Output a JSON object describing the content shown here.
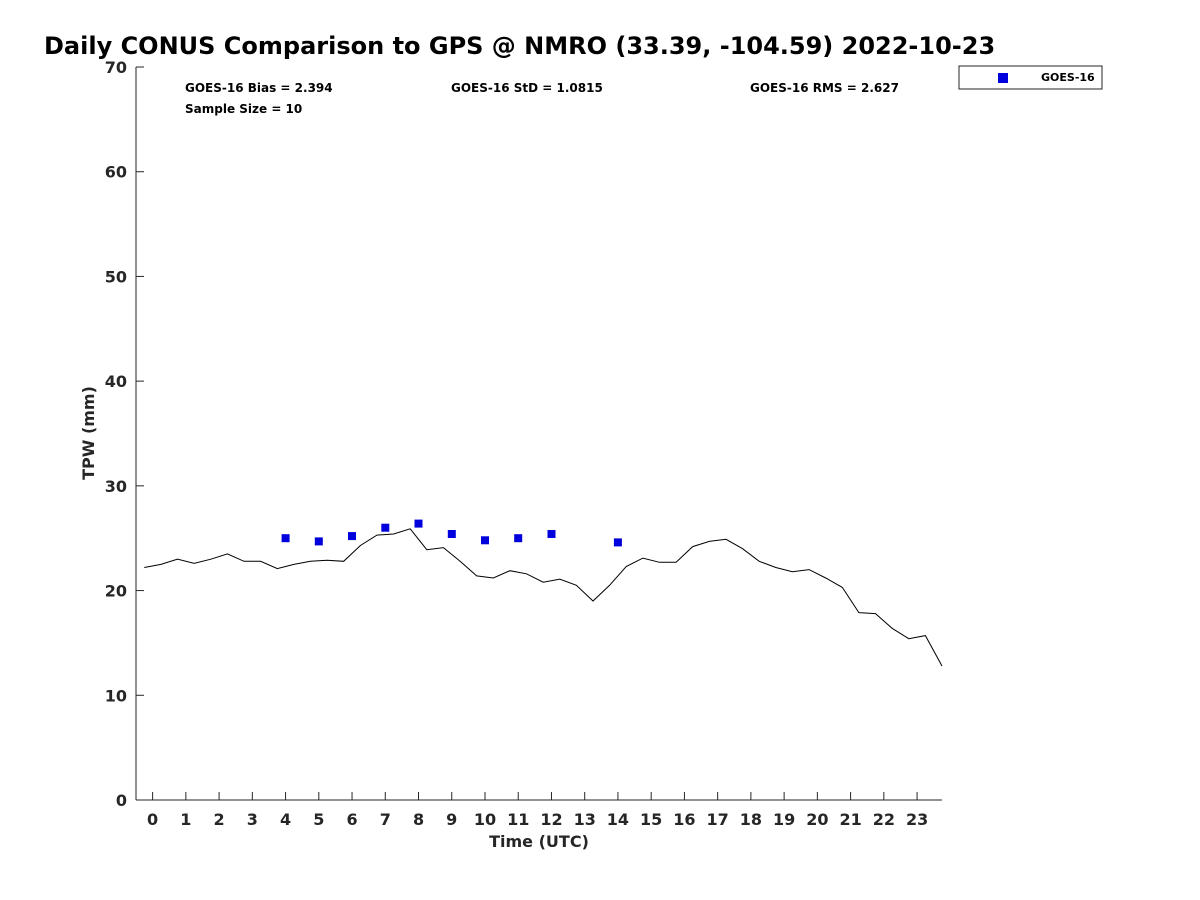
{
  "chart_data": {
    "type": "scatter",
    "title": "Daily CONUS Comparison to GPS @ NMRO (33.39, -104.59) 2022-10-23",
    "xlabel": "Time (UTC)",
    "ylabel": "TPW (mm)",
    "xlim": [
      -0.5,
      23.75
    ],
    "ylim": [
      0,
      70
    ],
    "x_ticks": [
      0,
      1,
      2,
      3,
      4,
      5,
      6,
      7,
      8,
      9,
      10,
      11,
      12,
      13,
      14,
      15,
      16,
      17,
      18,
      19,
      20,
      21,
      22,
      23
    ],
    "y_ticks": [
      0,
      10,
      20,
      30,
      40,
      50,
      60,
      70
    ],
    "grid": false,
    "legend_position": "top-right",
    "stats": {
      "bias": "GOES-16 Bias = 2.394",
      "std": "GOES-16 StD = 1.0815",
      "rms": "GOES-16 RMS = 2.627",
      "sample_size": "Sample Size = 10"
    },
    "series": [
      {
        "name": "GOES-16",
        "kind": "points",
        "color": "#0000dd",
        "x": [
          4,
          5,
          6,
          7,
          8,
          9,
          10,
          11,
          12,
          14
        ],
        "y": [
          25.0,
          24.7,
          25.2,
          26.0,
          26.4,
          25.4,
          24.8,
          25.0,
          25.4,
          24.6
        ]
      },
      {
        "kind": "line",
        "color": "#000000",
        "x": [
          -0.25,
          0.25,
          0.75,
          1.25,
          1.75,
          2.25,
          2.75,
          3.25,
          3.75,
          4.25,
          4.75,
          5.25,
          5.75,
          6.25,
          6.75,
          7.25,
          7.75,
          8.25,
          8.75,
          9.25,
          9.75,
          10.25,
          10.75,
          11.25,
          11.75,
          12.25,
          12.75,
          13.25,
          13.75,
          14.25,
          14.75,
          15.25,
          15.75,
          16.25,
          16.75,
          17.25,
          17.75,
          18.25,
          18.75,
          19.25,
          19.75,
          20.25,
          20.75,
          21.25,
          21.75,
          22.25,
          22.75,
          23.25,
          23.75
        ],
        "y": [
          22.2,
          22.5,
          23.0,
          22.6,
          23.0,
          23.5,
          22.8,
          22.8,
          22.1,
          22.5,
          22.8,
          22.9,
          22.8,
          24.3,
          25.3,
          25.4,
          25.9,
          23.9,
          24.1,
          22.8,
          21.4,
          21.2,
          21.9,
          21.6,
          20.8,
          21.1,
          20.5,
          19.0,
          20.5,
          22.3,
          23.1,
          22.7,
          22.7,
          24.2,
          24.7,
          24.9,
          24.0,
          22.8,
          22.2,
          21.8,
          22.0,
          21.2,
          20.3,
          17.9,
          17.8,
          16.4,
          15.4,
          15.7,
          12.8
        ]
      }
    ]
  }
}
